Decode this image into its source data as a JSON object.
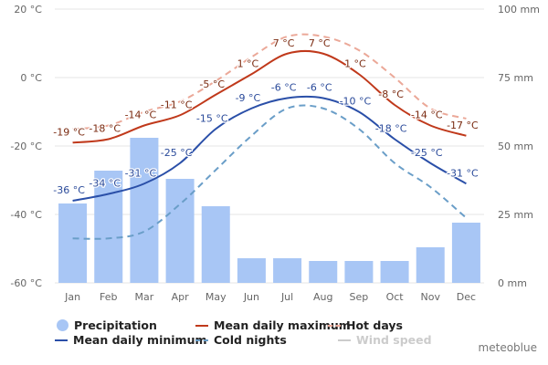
{
  "chart_data": {
    "type": "bar+line",
    "categories": [
      "Jan",
      "Feb",
      "Mar",
      "Apr",
      "May",
      "Jun",
      "Jul",
      "Aug",
      "Sep",
      "Oct",
      "Nov",
      "Dec"
    ],
    "y_left": {
      "range": [
        -60,
        20
      ],
      "ticks": [
        20,
        0,
        -20,
        -40,
        -60
      ],
      "tick_labels": [
        "20 °C",
        "0 °C",
        "-20 °C",
        "-40 °C",
        "-60 °C"
      ]
    },
    "y_right": {
      "range": [
        0,
        100
      ],
      "ticks": [
        100,
        75,
        50,
        25,
        0
      ],
      "tick_labels": [
        "100 mm",
        "75 mm",
        "50 mm",
        "25 mm",
        "0 mm"
      ]
    },
    "grid": true,
    "legend_placement": "bottom",
    "series": [
      {
        "name": "Precipitation",
        "kind": "bar",
        "axis": "right",
        "color": "#a8c6f5",
        "values": [
          29,
          41,
          53,
          38,
          28,
          9,
          9,
          8,
          8,
          8,
          13,
          22
        ]
      },
      {
        "name": "Mean daily maximum",
        "kind": "line",
        "axis": "left",
        "color": "#c0391b",
        "label_color": "#7a2a10",
        "values": [
          -19,
          -18,
          -14,
          -11,
          -5,
          1,
          7,
          7,
          1,
          -8,
          -14,
          -17
        ],
        "labels": [
          "-19 °C",
          "-18 °C",
          "-14 °C",
          "-11 °C",
          "-5 °C",
          "1 °C",
          "7 °C",
          "7 °C",
          "1 °C",
          "-8 °C",
          "-14 °C",
          "-17 °C"
        ]
      },
      {
        "name": "Hot days",
        "kind": "dashed",
        "axis": "left",
        "color": "#eba898",
        "values": [
          -15,
          -14,
          -10,
          -7,
          -1,
          6,
          12,
          12,
          8,
          0,
          -9,
          -12
        ]
      },
      {
        "name": "Mean daily minimum",
        "kind": "line",
        "axis": "left",
        "color": "#2a4fa8",
        "label_color": "#2a4a9a",
        "values": [
          -36,
          -34,
          -31,
          -25,
          -15,
          -9,
          -6,
          -6,
          -10,
          -18,
          -25,
          -31
        ],
        "labels": [
          "-36 °C",
          "-34 °C",
          "-31 °C",
          "-25 °C",
          "-15 °C",
          "-9 °C",
          "-6 °C",
          "-6 °C",
          "-10 °C",
          "-18 °C",
          "-25 °C",
          "-31 °C"
        ]
      },
      {
        "name": "Cold nights",
        "kind": "dashed",
        "axis": "left",
        "color": "#6a9ec8",
        "values": [
          -47,
          -47,
          -45,
          -37,
          -27,
          -17,
          -9,
          -9,
          -15,
          -25,
          -32,
          -41
        ]
      },
      {
        "name": "Wind speed",
        "kind": "line",
        "hidden": true,
        "color": "#cccccc"
      }
    ],
    "credit": "meteoblue"
  }
}
